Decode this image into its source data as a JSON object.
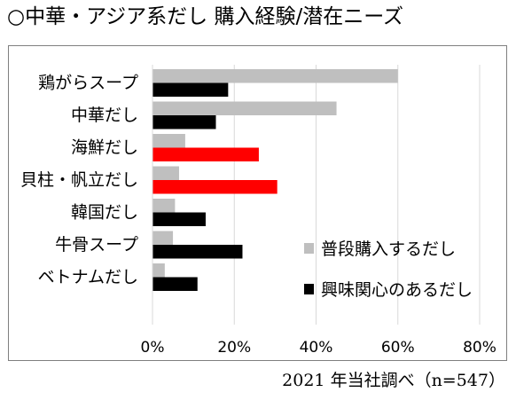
{
  "title": "○中華・アジア系だし 購入経験/潜在ニーズ",
  "source": "2021 年当社調べ（n=547）",
  "colors": {
    "purchased": "#bfbfbf",
    "interest": "#000000",
    "highlight": "#ff0000",
    "grid": "#d9d9d9",
    "frame": "#7f7f7f"
  },
  "chart_data": {
    "type": "bar",
    "orientation": "horizontal",
    "title": "",
    "xlabel": "",
    "ylabel": "",
    "categories": [
      "鶏がらスープ",
      "中華だし",
      "海鮮だし",
      "貝柱・帆立だし",
      "韓国だし",
      "牛骨スープ",
      "ベトナムだし"
    ],
    "series": [
      {
        "name": "普段購入するだし",
        "values": [
          60,
          45,
          8,
          6.5,
          5.5,
          5,
          3
        ]
      },
      {
        "name": "興味関心のあるだし",
        "values": [
          18.5,
          15.5,
          26,
          30.5,
          13,
          22,
          11
        ]
      }
    ],
    "highlight_series": "興味関心のあるだし",
    "highlight_categories": [
      "海鮮だし",
      "貝柱・帆立だし"
    ],
    "xlim": [
      0,
      80
    ],
    "xticks": [
      "0%",
      "20%",
      "40%",
      "60%",
      "80%"
    ],
    "grid": true,
    "legend_position": "bottom-right"
  }
}
